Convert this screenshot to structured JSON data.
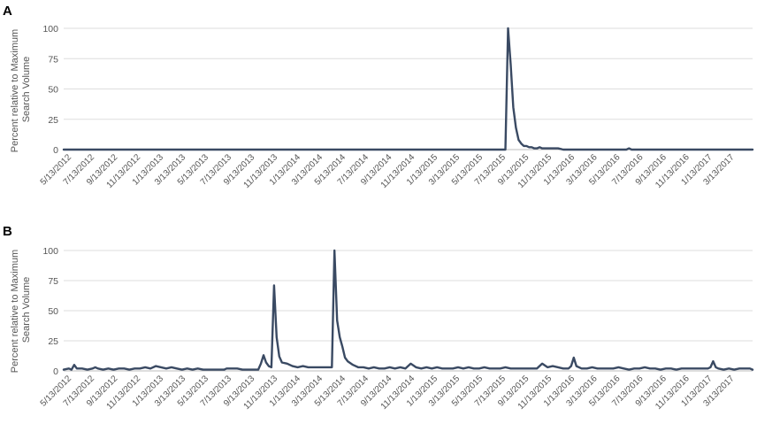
{
  "colors": {
    "line": "#3a4a63",
    "grid": "#dedede"
  },
  "chart_data": [
    {
      "panel": "A",
      "type": "line",
      "ylabel": "Percent relative to Maximum Search Volume",
      "ylim": [
        0,
        100
      ],
      "yticks": [
        0,
        25,
        50,
        75,
        100
      ],
      "grid": true,
      "xlabel": "",
      "x_ticks": [
        "5/13/2012",
        "7/13/2012",
        "9/13/2012",
        "11/13/2012",
        "1/13/2013",
        "3/13/2013",
        "5/13/2013",
        "7/13/2013",
        "9/13/2013",
        "11/13/2013",
        "1/13/2014",
        "3/13/2014",
        "5/13/2014",
        "7/13/2014",
        "9/13/2014",
        "11/13/2014",
        "1/13/2015",
        "3/13/2015",
        "5/13/2015",
        "7/13/2015",
        "9/13/2015",
        "11/13/2015",
        "1/13/2016",
        "3/13/2016",
        "5/13/2016",
        "7/13/2016",
        "9/13/2016",
        "11/13/2016",
        "1/13/2017",
        "3/13/2017"
      ],
      "x_start": "2012-04-29",
      "x_end": "2017-05-07",
      "series": [
        {
          "points": [
            [
              "2012-04-29",
              0
            ],
            [
              "2015-07-19",
              0
            ],
            [
              "2015-07-26",
              100
            ],
            [
              "2015-08-02",
              70
            ],
            [
              "2015-08-09",
              35
            ],
            [
              "2015-08-16",
              18
            ],
            [
              "2015-08-23",
              8
            ],
            [
              "2015-08-30",
              5
            ],
            [
              "2015-09-06",
              3
            ],
            [
              "2015-09-13",
              3
            ],
            [
              "2015-09-20",
              2
            ],
            [
              "2015-09-27",
              2
            ],
            [
              "2015-10-04",
              1
            ],
            [
              "2015-10-11",
              1
            ],
            [
              "2015-10-18",
              2
            ],
            [
              "2015-10-25",
              1
            ],
            [
              "2015-11-01",
              1
            ],
            [
              "2015-11-08",
              1
            ],
            [
              "2015-11-22",
              1
            ],
            [
              "2015-12-06",
              1
            ],
            [
              "2015-12-20",
              0
            ],
            [
              "2016-01-17",
              0
            ],
            [
              "2016-06-05",
              0
            ],
            [
              "2016-06-12",
              1
            ],
            [
              "2016-06-19",
              0
            ],
            [
              "2017-05-07",
              0
            ]
          ]
        }
      ]
    },
    {
      "panel": "B",
      "type": "line",
      "ylabel": "Percent relative to Maximum Search Volume",
      "ylim": [
        0,
        100
      ],
      "yticks": [
        0,
        25,
        50,
        75,
        100
      ],
      "grid": true,
      "xlabel": "",
      "x_ticks": [
        "5/13/2012",
        "7/13/2012",
        "9/13/2012",
        "11/13/2012",
        "1/13/2013",
        "3/13/2013",
        "5/13/2013",
        "7/13/2013",
        "9/13/2013",
        "11/13/2013",
        "1/13/2014",
        "3/13/2014",
        "5/13/2014",
        "7/13/2014",
        "9/13/2014",
        "11/13/2014",
        "1/13/2015",
        "3/13/2015",
        "5/13/2015",
        "7/13/2015",
        "9/13/2015",
        "11/13/2015",
        "1/13/2016",
        "3/13/2016",
        "5/13/2016",
        "7/13/2016",
        "9/13/2016",
        "11/13/2016",
        "1/13/2017",
        "3/13/2017"
      ],
      "x_start": "2012-04-29",
      "x_end": "2017-05-07",
      "series": [
        {
          "points": [
            [
              "2012-04-29",
              1
            ],
            [
              "2012-05-13",
              2
            ],
            [
              "2012-05-20",
              1
            ],
            [
              "2012-05-27",
              5
            ],
            [
              "2012-06-03",
              2
            ],
            [
              "2012-06-17",
              2
            ],
            [
              "2012-07-01",
              1
            ],
            [
              "2012-07-15",
              2
            ],
            [
              "2012-07-22",
              3
            ],
            [
              "2012-07-29",
              2
            ],
            [
              "2012-08-12",
              1
            ],
            [
              "2012-08-26",
              2
            ],
            [
              "2012-09-09",
              1
            ],
            [
              "2012-09-23",
              2
            ],
            [
              "2012-10-07",
              2
            ],
            [
              "2012-10-21",
              1
            ],
            [
              "2012-11-04",
              2
            ],
            [
              "2012-11-18",
              2
            ],
            [
              "2012-12-02",
              3
            ],
            [
              "2012-12-16",
              2
            ],
            [
              "2012-12-30",
              4
            ],
            [
              "2013-01-13",
              3
            ],
            [
              "2013-01-27",
              2
            ],
            [
              "2013-02-10",
              3
            ],
            [
              "2013-02-24",
              2
            ],
            [
              "2013-03-10",
              1
            ],
            [
              "2013-03-24",
              2
            ],
            [
              "2013-04-07",
              1
            ],
            [
              "2013-04-21",
              2
            ],
            [
              "2013-05-05",
              1
            ],
            [
              "2013-05-19",
              1
            ],
            [
              "2013-06-02",
              1
            ],
            [
              "2013-06-16",
              1
            ],
            [
              "2013-06-30",
              1
            ],
            [
              "2013-07-07",
              2
            ],
            [
              "2013-07-21",
              2
            ],
            [
              "2013-08-04",
              2
            ],
            [
              "2013-08-18",
              1
            ],
            [
              "2013-09-01",
              1
            ],
            [
              "2013-09-15",
              1
            ],
            [
              "2013-09-29",
              1
            ],
            [
              "2013-10-06",
              6
            ],
            [
              "2013-10-13",
              13
            ],
            [
              "2013-10-20",
              7
            ],
            [
              "2013-10-27",
              4
            ],
            [
              "2013-11-03",
              3
            ],
            [
              "2013-11-10",
              71
            ],
            [
              "2013-11-17",
              28
            ],
            [
              "2013-11-24",
              12
            ],
            [
              "2013-12-01",
              7
            ],
            [
              "2013-12-15",
              6
            ],
            [
              "2013-12-29",
              4
            ],
            [
              "2014-01-12",
              3
            ],
            [
              "2014-01-26",
              4
            ],
            [
              "2014-02-09",
              3
            ],
            [
              "2014-02-23",
              3
            ],
            [
              "2014-03-09",
              3
            ],
            [
              "2014-03-23",
              3
            ],
            [
              "2014-04-06",
              3
            ],
            [
              "2014-04-13",
              3
            ],
            [
              "2014-04-20",
              100
            ],
            [
              "2014-04-27",
              42
            ],
            [
              "2014-05-04",
              28
            ],
            [
              "2014-05-11",
              20
            ],
            [
              "2014-05-18",
              11
            ],
            [
              "2014-05-25",
              8
            ],
            [
              "2014-06-08",
              5
            ],
            [
              "2014-06-22",
              3
            ],
            [
              "2014-07-06",
              3
            ],
            [
              "2014-07-20",
              2
            ],
            [
              "2014-08-03",
              3
            ],
            [
              "2014-08-17",
              2
            ],
            [
              "2014-08-31",
              2
            ],
            [
              "2014-09-14",
              3
            ],
            [
              "2014-09-28",
              2
            ],
            [
              "2014-10-12",
              3
            ],
            [
              "2014-10-26",
              2
            ],
            [
              "2014-11-09",
              6
            ],
            [
              "2014-11-23",
              3
            ],
            [
              "2014-12-07",
              2
            ],
            [
              "2014-12-21",
              3
            ],
            [
              "2015-01-04",
              2
            ],
            [
              "2015-01-18",
              3
            ],
            [
              "2015-02-01",
              2
            ],
            [
              "2015-02-15",
              2
            ],
            [
              "2015-03-01",
              2
            ],
            [
              "2015-03-15",
              3
            ],
            [
              "2015-03-29",
              2
            ],
            [
              "2015-04-12",
              3
            ],
            [
              "2015-04-26",
              2
            ],
            [
              "2015-05-10",
              2
            ],
            [
              "2015-05-24",
              3
            ],
            [
              "2015-06-07",
              2
            ],
            [
              "2015-06-21",
              2
            ],
            [
              "2015-07-05",
              2
            ],
            [
              "2015-07-19",
              3
            ],
            [
              "2015-08-02",
              2
            ],
            [
              "2015-08-16",
              2
            ],
            [
              "2015-08-30",
              2
            ],
            [
              "2015-09-13",
              2
            ],
            [
              "2015-09-27",
              2
            ],
            [
              "2015-10-11",
              2
            ],
            [
              "2015-10-25",
              6
            ],
            [
              "2015-11-08",
              3
            ],
            [
              "2015-11-22",
              4
            ],
            [
              "2015-12-06",
              3
            ],
            [
              "2015-12-20",
              2
            ],
            [
              "2016-01-03",
              2
            ],
            [
              "2016-01-10",
              4
            ],
            [
              "2016-01-17",
              11
            ],
            [
              "2016-01-24",
              4
            ],
            [
              "2016-02-07",
              2
            ],
            [
              "2016-02-21",
              2
            ],
            [
              "2016-03-06",
              3
            ],
            [
              "2016-03-20",
              2
            ],
            [
              "2016-04-03",
              2
            ],
            [
              "2016-04-17",
              2
            ],
            [
              "2016-05-01",
              2
            ],
            [
              "2016-05-15",
              3
            ],
            [
              "2016-05-29",
              2
            ],
            [
              "2016-06-12",
              1
            ],
            [
              "2016-06-26",
              2
            ],
            [
              "2016-07-10",
              2
            ],
            [
              "2016-07-24",
              3
            ],
            [
              "2016-08-07",
              2
            ],
            [
              "2016-08-21",
              2
            ],
            [
              "2016-09-04",
              1
            ],
            [
              "2016-09-18",
              2
            ],
            [
              "2016-10-02",
              2
            ],
            [
              "2016-10-16",
              1
            ],
            [
              "2016-10-30",
              2
            ],
            [
              "2016-11-13",
              2
            ],
            [
              "2016-11-27",
              2
            ],
            [
              "2016-12-11",
              2
            ],
            [
              "2016-12-25",
              2
            ],
            [
              "2017-01-08",
              2
            ],
            [
              "2017-01-15",
              3
            ],
            [
              "2017-01-22",
              8
            ],
            [
              "2017-01-29",
              3
            ],
            [
              "2017-02-05",
              2
            ],
            [
              "2017-02-19",
              1
            ],
            [
              "2017-03-05",
              2
            ],
            [
              "2017-03-19",
              1
            ],
            [
              "2017-04-02",
              2
            ],
            [
              "2017-04-16",
              2
            ],
            [
              "2017-04-30",
              2
            ],
            [
              "2017-05-07",
              1
            ]
          ]
        }
      ]
    }
  ]
}
